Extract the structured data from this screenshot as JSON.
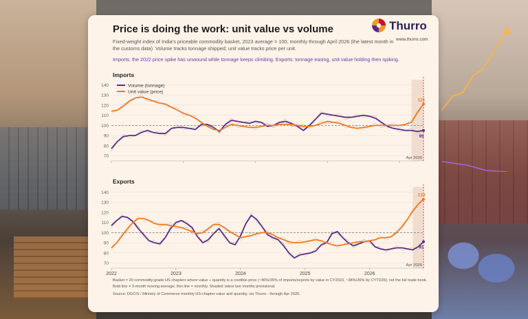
{
  "header": {
    "title": "Price is doing the work: unit value vs volume",
    "subtitle": "Fixed-weight index of India's priceable commodity basket, 2023 average = 100, monthly through April 2026 (the latest month in the customs data). Volume tracks tonnage shipped; unit value tracks price per unit.",
    "note": "Imports: the 2022 price spike has unwound while tonnage keeps climbing. Exports: tonnage easing, unit value holding then spiking."
  },
  "brand": {
    "name": "Thurro",
    "site": "www.thurro.com"
  },
  "colors": {
    "volume": "#5b2a86",
    "unit_value": "#ee7a1e",
    "card": "#fdf3e9",
    "accent": "#c8102e"
  },
  "footer": {
    "line1": "Basket = 20 commodity-grade HS chapters where value ÷ quantity is a credible price (~46%/35% of imports/exports by value in CY2023, ~38%/26% by CYTD26); not the full trade book.",
    "line2": "Bold line = 3-month moving average; thin line = monthly. Shaded: latest two months provisional.",
    "line3": "Source: DGCIS / Ministry of Commerce monthly HS-chapter value and quantity, via Thurro · through Apr 2026."
  },
  "chart_data": [
    {
      "type": "line",
      "panel": "Imports",
      "title": "Imports",
      "ylim": [
        65,
        145
      ],
      "yticks": [
        70,
        80,
        90,
        100,
        110,
        120,
        130,
        140
      ],
      "xticks": [
        "2022",
        "2023",
        "2024",
        "2025",
        "2026"
      ],
      "legend": "top-left",
      "last_month_label": "Apr 2026",
      "series": [
        {
          "name": "Volume (tonnage)",
          "color": "#5b2a86",
          "end_label": "95",
          "values": [
            77,
            84,
            89,
            90,
            90,
            93,
            95,
            93,
            92,
            92,
            97,
            98,
            98,
            97,
            96,
            101,
            101,
            98,
            94,
            101,
            105,
            104,
            103,
            102,
            104,
            103,
            99,
            100,
            103,
            104,
            102,
            99,
            95,
            100,
            106,
            112,
            111,
            110,
            109,
            108,
            108,
            109,
            110,
            109,
            107,
            103,
            99,
            97,
            96,
            95,
            95,
            94,
            95
          ]
        },
        {
          "name": "Unit value (price)",
          "color": "#ee7a1e",
          "end_label": "121",
          "values": [
            114,
            115,
            119,
            124,
            127,
            128,
            126,
            124,
            122,
            121,
            118,
            115,
            112,
            110,
            107,
            103,
            99,
            96,
            95,
            98,
            101,
            100,
            99,
            98,
            98,
            99,
            100,
            100,
            101,
            101,
            101,
            100,
            99,
            99,
            100,
            102,
            104,
            103,
            102,
            100,
            98,
            97,
            98,
            99,
            100,
            100,
            100,
            100,
            100,
            101,
            103,
            113,
            121
          ]
        }
      ]
    },
    {
      "type": "line",
      "panel": "Exports",
      "title": "Exports",
      "ylim": [
        65,
        145
      ],
      "yticks": [
        70,
        80,
        90,
        100,
        110,
        120,
        130,
        140
      ],
      "xticks": [
        "2022",
        "2023",
        "2024",
        "2025",
        "2026"
      ],
      "legend": "none",
      "last_month_label": "Apr 2026",
      "series": [
        {
          "name": "Volume (tonnage)",
          "color": "#5b2a86",
          "end_label": "91",
          "values": [
            107,
            112,
            116,
            115,
            111,
            104,
            98,
            92,
            90,
            89,
            95,
            104,
            110,
            112,
            109,
            105,
            96,
            90,
            93,
            99,
            104,
            97,
            90,
            88,
            97,
            109,
            117,
            113,
            106,
            98,
            95,
            93,
            87,
            80,
            75,
            78,
            79,
            80,
            82,
            88,
            90,
            99,
            101,
            95,
            90,
            87,
            89,
            91,
            92,
            86,
            84,
            83,
            84,
            85,
            85,
            84,
            83,
            86,
            91
          ]
        },
        {
          "name": "Unit value (price)",
          "color": "#ee7a1e",
          "end_label": "133",
          "values": [
            85,
            90,
            97,
            104,
            110,
            114,
            114,
            112,
            109,
            108,
            108,
            107,
            106,
            105,
            103,
            101,
            99,
            100,
            104,
            108,
            108,
            105,
            101,
            98,
            95,
            96,
            97,
            99,
            100,
            100,
            98,
            95,
            93,
            91,
            90,
            90,
            91,
            92,
            93,
            92,
            90,
            88,
            87,
            88,
            89,
            90,
            91,
            91,
            92,
            93,
            95,
            95,
            96,
            100,
            106,
            113,
            121,
            128,
            133
          ]
        }
      ]
    }
  ]
}
